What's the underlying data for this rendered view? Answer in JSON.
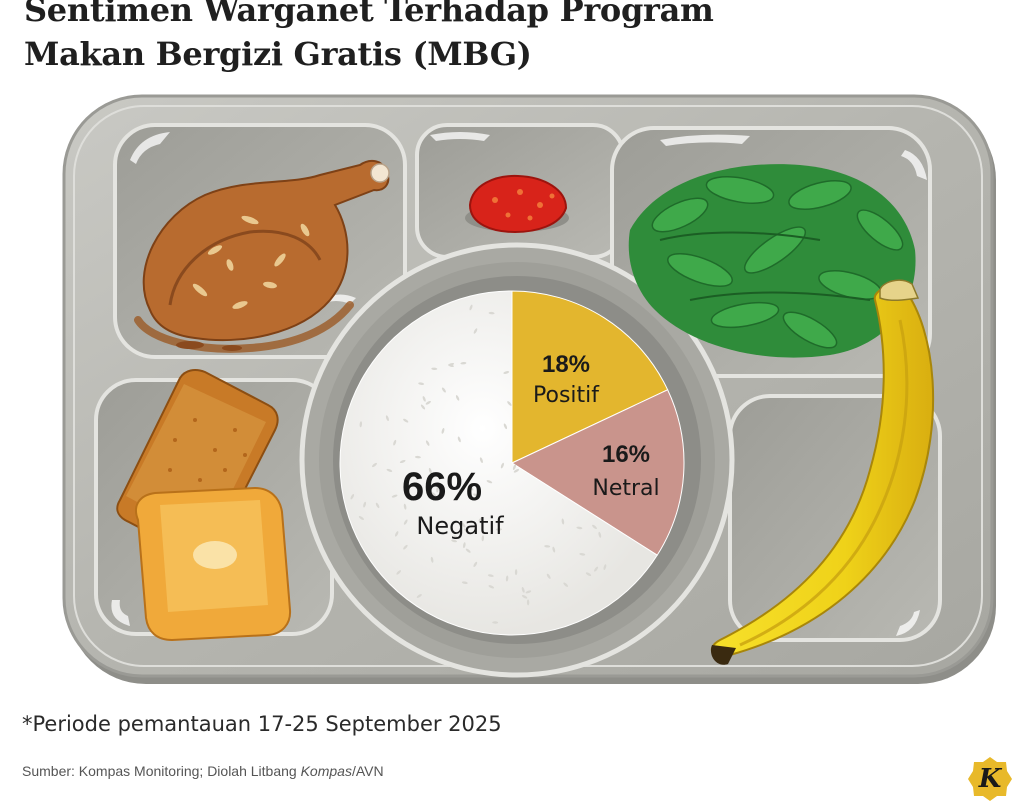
{
  "title_lines": [
    "Sentimen Warganet Terhadap Program",
    "Makan Bergizi Gratis (MBG)"
  ],
  "chart_data": {
    "type": "pie",
    "title": "Sentimen Warganet Terhadap Program Makan Bergizi Gratis (MBG)",
    "categories": [
      "Positif",
      "Netral",
      "Negatif"
    ],
    "values": [
      18,
      16,
      66
    ],
    "value_labels": [
      "18%",
      "16%",
      "66%"
    ],
    "colors": [
      "#e3b62e",
      "#c9948c",
      "#f2f1ee"
    ]
  },
  "footnote": "*Periode pemantauan 17-25 September 2025",
  "source": {
    "prefix": "Sumber: Kompas Monitoring; Diolah Litbang ",
    "italic": "Kompas",
    "suffix": "/AVN"
  },
  "logo": {
    "letter": "K",
    "color": "#e8b92a",
    "icon": "kompas-logo-icon"
  }
}
